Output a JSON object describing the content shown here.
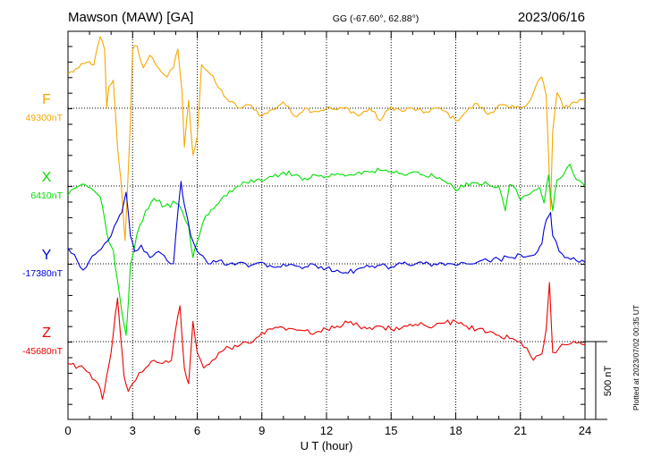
{
  "header": {
    "station": "Mawson (MAW)  [GA]",
    "coords": "GG (-67.60°,  62.88°)",
    "date": "2023/06/16"
  },
  "side_note": "Plotted at 2023/07/02 00:35 UT",
  "scale_bar_label": "500 nT",
  "chart_data": {
    "type": "line",
    "xlabel": "U T (hour)",
    "xlim": [
      0,
      24
    ],
    "xticks": [
      0,
      3,
      6,
      9,
      12,
      15,
      18,
      21,
      24
    ],
    "grid": true,
    "series": [
      {
        "name": "F",
        "baseline_label": "49300nT",
        "color": "#f5a800",
        "baseline": 49300,
        "points": [
          [
            0,
            49520
          ],
          [
            0.5,
            49560
          ],
          [
            1.0,
            49600
          ],
          [
            1.2,
            49580
          ],
          [
            1.5,
            49760
          ],
          [
            1.7,
            49680
          ],
          [
            1.8,
            49300
          ],
          [
            1.9,
            49440
          ],
          [
            2.1,
            49480
          ],
          [
            2.3,
            49050
          ],
          [
            2.45,
            48850
          ],
          [
            2.55,
            48650
          ],
          [
            2.65,
            48450
          ],
          [
            2.8,
            48900
          ],
          [
            2.9,
            49200
          ],
          [
            3.0,
            49680
          ],
          [
            3.2,
            49700
          ],
          [
            3.5,
            49560
          ],
          [
            3.8,
            49640
          ],
          [
            4.2,
            49560
          ],
          [
            4.6,
            49500
          ],
          [
            4.9,
            49560
          ],
          [
            5.1,
            49680
          ],
          [
            5.3,
            49400
          ],
          [
            5.4,
            49050
          ],
          [
            5.6,
            49350
          ],
          [
            5.8,
            49000
          ],
          [
            6.0,
            49120
          ],
          [
            6.2,
            49580
          ],
          [
            6.6,
            49520
          ],
          [
            7.0,
            49430
          ],
          [
            7.5,
            49340
          ],
          [
            8.0,
            49300
          ],
          [
            8.5,
            49320
          ],
          [
            9.0,
            49250
          ],
          [
            9.5,
            49290
          ],
          [
            10.0,
            49340
          ],
          [
            10.5,
            49250
          ],
          [
            11.0,
            49300
          ],
          [
            11.5,
            49280
          ],
          [
            12.0,
            49300
          ],
          [
            12.5,
            49290
          ],
          [
            13.0,
            49300
          ],
          [
            13.5,
            49250
          ],
          [
            14.0,
            49300
          ],
          [
            14.5,
            49220
          ],
          [
            15.0,
            49310
          ],
          [
            15.5,
            49280
          ],
          [
            16.0,
            49300
          ],
          [
            16.5,
            49270
          ],
          [
            17.0,
            49300
          ],
          [
            17.5,
            49280
          ],
          [
            18.0,
            49220
          ],
          [
            18.5,
            49280
          ],
          [
            19.0,
            49330
          ],
          [
            19.5,
            49260
          ],
          [
            20.0,
            49320
          ],
          [
            20.5,
            49300
          ],
          [
            21.0,
            49300
          ],
          [
            21.5,
            49360
          ],
          [
            21.8,
            49470
          ],
          [
            22.0,
            49500
          ],
          [
            22.2,
            49380
          ],
          [
            22.4,
            48650
          ],
          [
            22.5,
            49150
          ],
          [
            22.7,
            49400
          ],
          [
            23.0,
            49300
          ],
          [
            23.5,
            49340
          ],
          [
            24.0,
            49360
          ]
        ]
      },
      {
        "name": "X",
        "baseline_label": "6410nT",
        "color": "#00e000",
        "baseline": 6410,
        "points": [
          [
            0,
            6350
          ],
          [
            0.4,
            6400
          ],
          [
            0.8,
            6420
          ],
          [
            1.2,
            6380
          ],
          [
            1.5,
            6340
          ],
          [
            1.7,
            6200
          ],
          [
            1.9,
            6050
          ],
          [
            2.1,
            6000
          ],
          [
            2.3,
            5800
          ],
          [
            2.5,
            5600
          ],
          [
            2.7,
            5450
          ],
          [
            2.9,
            5900
          ],
          [
            3.2,
            6100
          ],
          [
            3.6,
            6250
          ],
          [
            4.0,
            6330
          ],
          [
            4.5,
            6280
          ],
          [
            5.0,
            6300
          ],
          [
            5.3,
            6250
          ],
          [
            5.6,
            6150
          ],
          [
            5.8,
            5950
          ],
          [
            6.0,
            6050
          ],
          [
            6.4,
            6220
          ],
          [
            7.0,
            6300
          ],
          [
            7.5,
            6380
          ],
          [
            8.0,
            6410
          ],
          [
            8.5,
            6450
          ],
          [
            9.0,
            6440
          ],
          [
            9.5,
            6470
          ],
          [
            10.0,
            6500
          ],
          [
            10.5,
            6480
          ],
          [
            11.0,
            6460
          ],
          [
            11.5,
            6480
          ],
          [
            12.0,
            6470
          ],
          [
            12.5,
            6490
          ],
          [
            13.0,
            6480
          ],
          [
            13.5,
            6500
          ],
          [
            14.0,
            6500
          ],
          [
            14.5,
            6510
          ],
          [
            15.0,
            6500
          ],
          [
            15.5,
            6490
          ],
          [
            16.0,
            6500
          ],
          [
            16.5,
            6480
          ],
          [
            17.0,
            6470
          ],
          [
            17.5,
            6440
          ],
          [
            18.0,
            6380
          ],
          [
            18.5,
            6430
          ],
          [
            19.0,
            6430
          ],
          [
            19.5,
            6420
          ],
          [
            20.0,
            6410
          ],
          [
            20.3,
            6250
          ],
          [
            20.5,
            6420
          ],
          [
            20.8,
            6390
          ],
          [
            21.0,
            6320
          ],
          [
            21.3,
            6350
          ],
          [
            21.6,
            6380
          ],
          [
            21.9,
            6400
          ],
          [
            22.1,
            6300
          ],
          [
            22.3,
            6480
          ],
          [
            22.5,
            6250
          ],
          [
            22.7,
            6450
          ],
          [
            23.0,
            6480
          ],
          [
            23.3,
            6550
          ],
          [
            23.6,
            6450
          ],
          [
            24.0,
            6410
          ]
        ]
      },
      {
        "name": "Y",
        "baseline_label": "-17380nT",
        "color": "#0000dd",
        "baseline": -17380,
        "points": [
          [
            0,
            -17280
          ],
          [
            0.3,
            -17320
          ],
          [
            0.7,
            -17420
          ],
          [
            1.0,
            -17360
          ],
          [
            1.4,
            -17300
          ],
          [
            1.7,
            -17250
          ],
          [
            2.0,
            -17200
          ],
          [
            2.3,
            -17100
          ],
          [
            2.5,
            -17050
          ],
          [
            2.7,
            -16920
          ],
          [
            2.9,
            -17200
          ],
          [
            3.1,
            -17300
          ],
          [
            3.4,
            -17260
          ],
          [
            3.8,
            -17340
          ],
          [
            4.2,
            -17300
          ],
          [
            4.6,
            -17360
          ],
          [
            4.9,
            -17380
          ],
          [
            5.1,
            -17050
          ],
          [
            5.25,
            -16850
          ],
          [
            5.4,
            -17000
          ],
          [
            5.7,
            -17200
          ],
          [
            6.0,
            -17300
          ],
          [
            6.5,
            -17380
          ],
          [
            7.0,
            -17360
          ],
          [
            7.5,
            -17380
          ],
          [
            8.0,
            -17370
          ],
          [
            8.5,
            -17390
          ],
          [
            9.0,
            -17370
          ],
          [
            9.5,
            -17400
          ],
          [
            10.0,
            -17380
          ],
          [
            10.5,
            -17390
          ],
          [
            11.0,
            -17400
          ],
          [
            11.5,
            -17390
          ],
          [
            12.0,
            -17410
          ],
          [
            12.5,
            -17420
          ],
          [
            13.0,
            -17440
          ],
          [
            13.5,
            -17410
          ],
          [
            14.0,
            -17400
          ],
          [
            14.5,
            -17390
          ],
          [
            15.0,
            -17400
          ],
          [
            15.5,
            -17380
          ],
          [
            16.0,
            -17390
          ],
          [
            16.5,
            -17380
          ],
          [
            17.0,
            -17380
          ],
          [
            17.5,
            -17390
          ],
          [
            18.0,
            -17390
          ],
          [
            18.5,
            -17380
          ],
          [
            19.0,
            -17370
          ],
          [
            19.5,
            -17360
          ],
          [
            20.0,
            -17350
          ],
          [
            20.5,
            -17340
          ],
          [
            21.0,
            -17320
          ],
          [
            21.4,
            -17330
          ],
          [
            21.8,
            -17300
          ],
          [
            22.0,
            -17250
          ],
          [
            22.2,
            -17100
          ],
          [
            22.4,
            -17050
          ],
          [
            22.5,
            -17200
          ],
          [
            22.8,
            -17300
          ],
          [
            23.2,
            -17340
          ],
          [
            23.6,
            -17360
          ],
          [
            24.0,
            -17370
          ]
        ]
      },
      {
        "name": "Z",
        "baseline_label": "-45680nT",
        "color": "#ee0000",
        "baseline": -45680,
        "points": [
          [
            0,
            -45820
          ],
          [
            0.5,
            -45840
          ],
          [
            1.0,
            -45880
          ],
          [
            1.4,
            -45950
          ],
          [
            1.6,
            -46050
          ],
          [
            1.8,
            -45900
          ],
          [
            2.0,
            -45750
          ],
          [
            2.2,
            -45500
          ],
          [
            2.3,
            -45400
          ],
          [
            2.45,
            -45660
          ],
          [
            2.6,
            -45900
          ],
          [
            2.8,
            -46000
          ],
          [
            3.0,
            -45950
          ],
          [
            3.3,
            -45880
          ],
          [
            3.6,
            -45850
          ],
          [
            4.0,
            -45800
          ],
          [
            4.4,
            -45820
          ],
          [
            4.8,
            -45800
          ],
          [
            5.0,
            -45600
          ],
          [
            5.2,
            -45450
          ],
          [
            5.4,
            -45850
          ],
          [
            5.6,
            -45950
          ],
          [
            5.8,
            -45550
          ],
          [
            6.0,
            -45750
          ],
          [
            6.3,
            -45850
          ],
          [
            6.7,
            -45800
          ],
          [
            7.0,
            -45750
          ],
          [
            7.5,
            -45720
          ],
          [
            8.0,
            -45700
          ],
          [
            8.5,
            -45690
          ],
          [
            9.0,
            -45620
          ],
          [
            9.5,
            -45600
          ],
          [
            10.0,
            -45590
          ],
          [
            10.5,
            -45600
          ],
          [
            11.0,
            -45610
          ],
          [
            11.5,
            -45620
          ],
          [
            12.0,
            -45600
          ],
          [
            12.5,
            -45580
          ],
          [
            13.0,
            -45560
          ],
          [
            13.5,
            -45580
          ],
          [
            14.0,
            -45590
          ],
          [
            14.5,
            -45580
          ],
          [
            15.0,
            -45600
          ],
          [
            15.5,
            -45590
          ],
          [
            16.0,
            -45580
          ],
          [
            16.5,
            -45570
          ],
          [
            17.0,
            -45580
          ],
          [
            17.5,
            -45560
          ],
          [
            18.0,
            -45550
          ],
          [
            18.5,
            -45580
          ],
          [
            19.0,
            -45600
          ],
          [
            19.5,
            -45620
          ],
          [
            20.0,
            -45640
          ],
          [
            20.5,
            -45660
          ],
          [
            21.0,
            -45680
          ],
          [
            21.3,
            -45720
          ],
          [
            21.6,
            -45800
          ],
          [
            22.0,
            -45760
          ],
          [
            22.2,
            -45600
          ],
          [
            22.35,
            -45300
          ],
          [
            22.5,
            -45750
          ],
          [
            22.8,
            -45720
          ],
          [
            23.2,
            -45700
          ],
          [
            23.6,
            -45690
          ],
          [
            24.0,
            -45700
          ]
        ]
      }
    ]
  }
}
